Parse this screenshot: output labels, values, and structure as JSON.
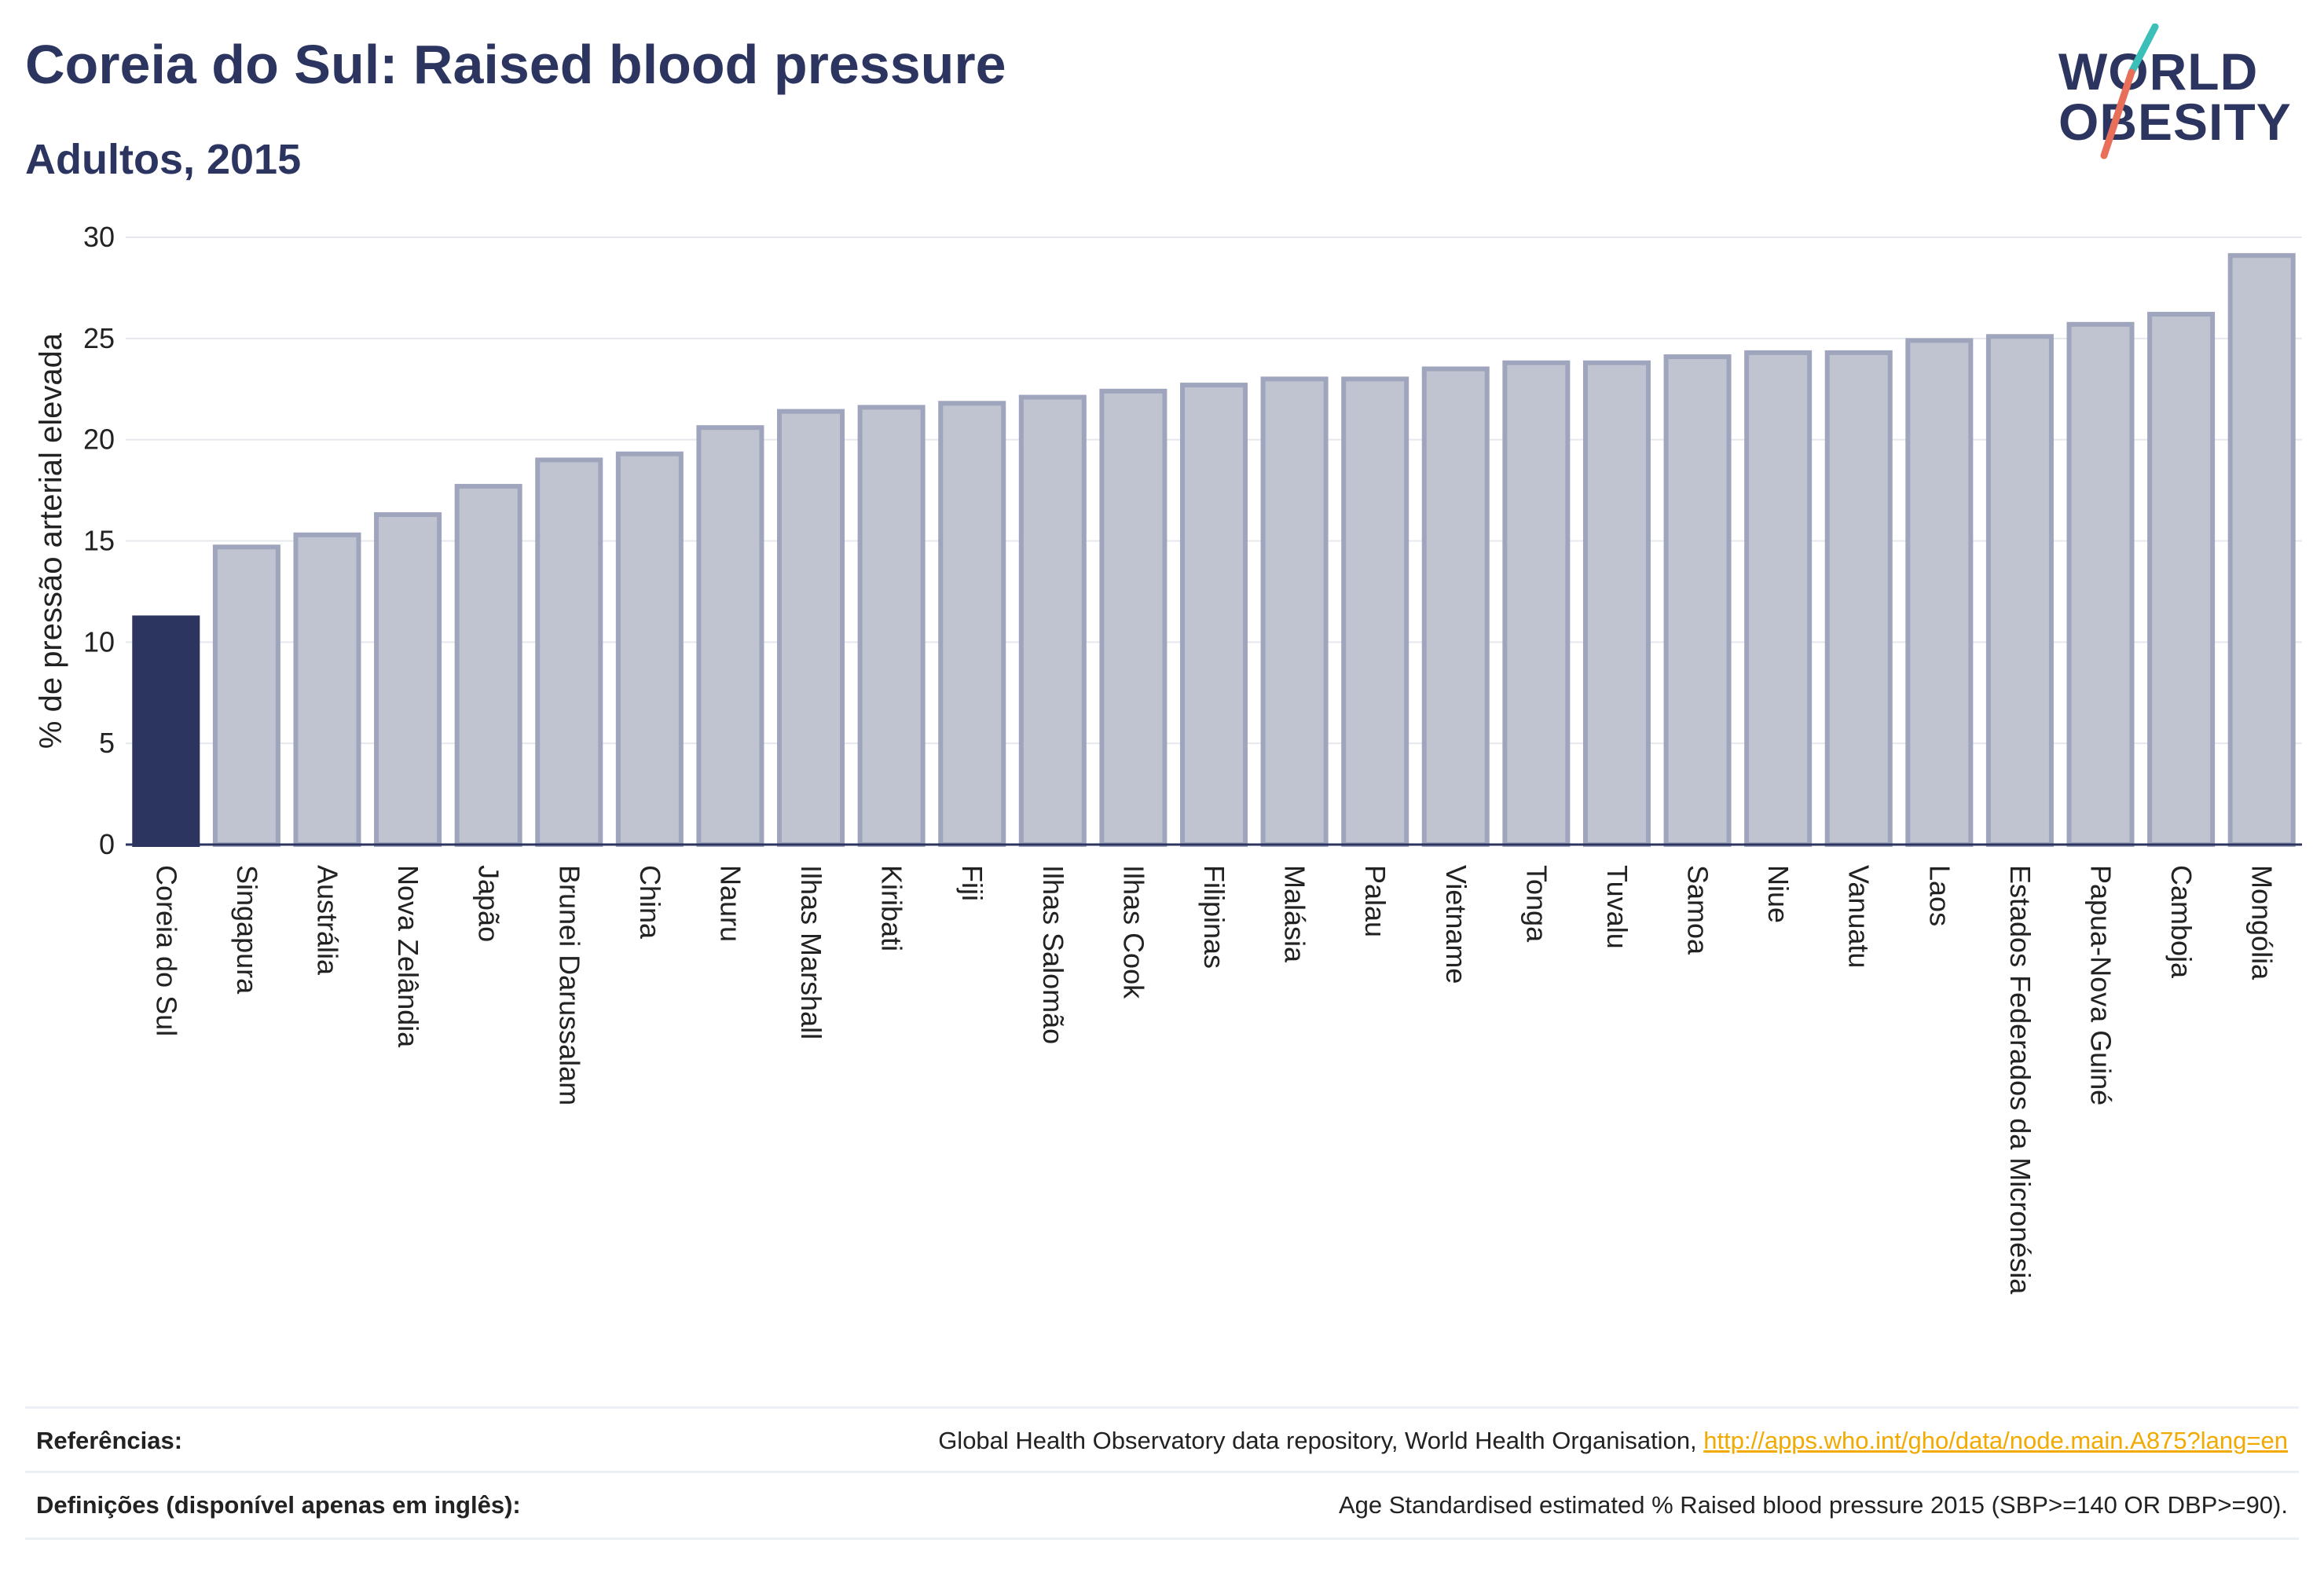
{
  "header": {
    "title": "Coreia do Sul: Raised blood pressure",
    "subtitle": "Adultos, 2015"
  },
  "logo": {
    "line1": "WORLD",
    "line2": "OBESITY"
  },
  "colors": {
    "highlight": "#2c3560",
    "bar_fill": "#c0c3d0",
    "bar_stroke": "#9fa5bc",
    "logo_teal": "#3bbfb9",
    "logo_coral": "#e8705a",
    "link": "#f2a900"
  },
  "chart_data": {
    "type": "bar",
    "title": "Coreia do Sul: Raised blood pressure",
    "subtitle": "Adultos, 2015",
    "xlabel": "",
    "ylabel": "% de pressão arterial elevada",
    "ylim": [
      0,
      30
    ],
    "yticks": [
      0,
      5,
      10,
      15,
      20,
      25,
      30
    ],
    "grid": true,
    "highlight_index": 0,
    "categories": [
      "Coreia do Sul",
      "Singapura",
      "Austrália",
      "Nova Zelândia",
      "Japão",
      "Brunei Darussalam",
      "China",
      "Nauru",
      "Ilhas Marshall",
      "Kiribati",
      "Fiji",
      "Ilhas Salomão",
      "Ilhas Cook",
      "Filipinas",
      "Malásia",
      "Palau",
      "Vietname",
      "Tonga",
      "Tuvalu",
      "Samoa",
      "Niue",
      "Vanuatu",
      "Laos",
      "Estados Federados da Micronésia",
      "Papua-Nova Guiné",
      "Camboja",
      "Mongólia"
    ],
    "values": [
      11.2,
      14.7,
      15.3,
      16.3,
      17.7,
      19.0,
      19.3,
      20.6,
      21.4,
      21.6,
      21.8,
      22.1,
      22.4,
      22.7,
      23.0,
      23.0,
      23.5,
      23.8,
      23.8,
      24.1,
      24.3,
      24.3,
      24.9,
      25.1,
      25.7,
      26.2,
      29.1
    ]
  },
  "footer": {
    "references_label": "Referências:",
    "references_text": "Global Health Observatory data repository, World Health Organisation, ",
    "references_link": "http://apps.who.int/gho/data/node.main.A875?lang=en",
    "definitions_label": "Definições (disponível apenas em inglês):",
    "definitions_text": "Age Standardised estimated % Raised blood pressure 2015 (SBP>=140 OR DBP>=90)."
  }
}
